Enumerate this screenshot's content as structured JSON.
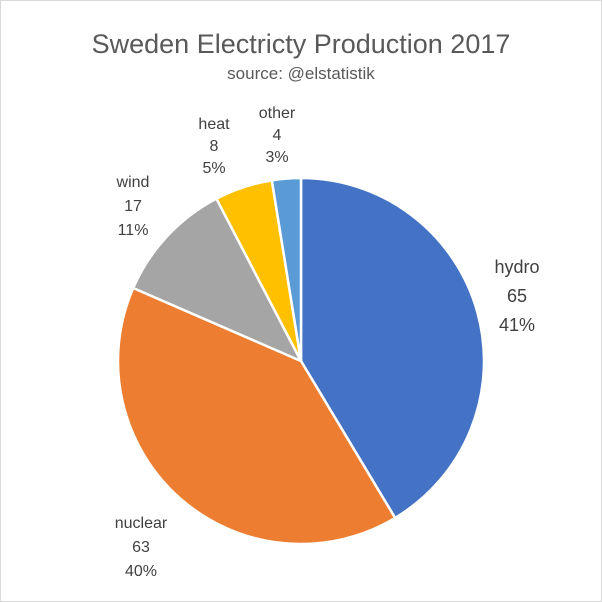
{
  "chart_data": {
    "type": "pie",
    "title": "Sweden Electricty Production 2017",
    "subtitle": "source: @elstatistik",
    "slices": [
      {
        "label": "hydro",
        "value": 65,
        "percent": "41%",
        "color": "#4472C4"
      },
      {
        "label": "nuclear",
        "value": 63,
        "percent": "40%",
        "color": "#ED7D31"
      },
      {
        "label": "wind",
        "value": 17,
        "percent": "11%",
        "color": "#A5A5A5"
      },
      {
        "label": "heat",
        "value": 8,
        "percent": "5%",
        "color": "#FFC000"
      },
      {
        "label": "other",
        "value": 4,
        "percent": "3%",
        "color": "#5B9BD5"
      }
    ],
    "slice_border_color": "#FFFFFF",
    "start_angle": "12 o'clock",
    "direction": "clockwise",
    "legend": "none",
    "data_labels": "outside"
  }
}
